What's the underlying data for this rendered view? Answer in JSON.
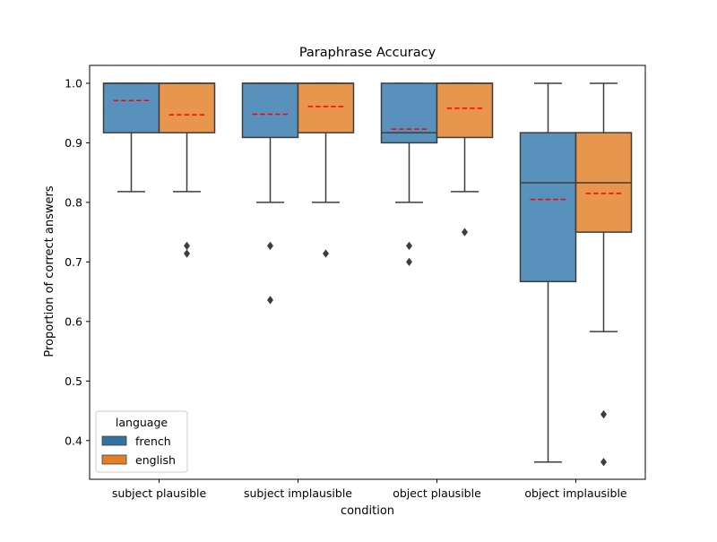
{
  "chart_data": {
    "type": "box",
    "title": "Paraphrase Accuracy",
    "xlabel": "condition",
    "ylabel": "Proportion of correct answers",
    "ylim": [
      0.335,
      1.03
    ],
    "yticks": [
      0.4,
      0.5,
      0.6,
      0.7,
      0.8,
      0.9,
      1.0
    ],
    "ytick_labels": [
      "0.4",
      "0.5",
      "0.6",
      "0.7",
      "0.8",
      "0.9",
      "1.0"
    ],
    "categories": [
      "subject plausible",
      "subject implausible",
      "object plausible",
      "object implausible"
    ],
    "legend": {
      "title": "language",
      "position": "lower-left",
      "entries": [
        "french",
        "english"
      ]
    },
    "mean_marker": "red dashed line",
    "series": [
      {
        "name": "french",
        "color": "#3274a1",
        "boxes": [
          {
            "whisker_low": 0.818,
            "q1": 0.917,
            "median": 1.0,
            "q3": 1.0,
            "whisker_high": 1.0,
            "mean": 0.971,
            "outliers": []
          },
          {
            "whisker_low": 0.8,
            "q1": 0.909,
            "median": 1.0,
            "q3": 1.0,
            "whisker_high": 1.0,
            "mean": 0.948,
            "outliers": [
              0.727,
              0.636
            ]
          },
          {
            "whisker_low": 0.8,
            "q1": 0.9,
            "median": 0.917,
            "q3": 1.0,
            "whisker_high": 1.0,
            "mean": 0.923,
            "outliers": [
              0.727,
              0.7
            ]
          },
          {
            "whisker_low": 0.364,
            "q1": 0.667,
            "median": 0.833,
            "q3": 0.917,
            "whisker_high": 1.0,
            "mean": 0.805,
            "outliers": []
          }
        ]
      },
      {
        "name": "english",
        "color": "#e1812c",
        "boxes": [
          {
            "whisker_low": 0.818,
            "q1": 0.917,
            "median": 1.0,
            "q3": 1.0,
            "whisker_high": 1.0,
            "mean": 0.947,
            "outliers": [
              0.727,
              0.714
            ]
          },
          {
            "whisker_low": 0.8,
            "q1": 0.917,
            "median": 1.0,
            "q3": 1.0,
            "whisker_high": 1.0,
            "mean": 0.961,
            "outliers": [
              0.714
            ]
          },
          {
            "whisker_low": 0.818,
            "q1": 0.909,
            "median": 1.0,
            "q3": 1.0,
            "whisker_high": 1.0,
            "mean": 0.958,
            "outliers": [
              0.75
            ]
          },
          {
            "whisker_low": 0.583,
            "q1": 0.75,
            "median": 0.833,
            "q3": 0.917,
            "whisker_high": 1.0,
            "mean": 0.815,
            "outliers": [
              0.444,
              0.364
            ]
          }
        ]
      }
    ]
  }
}
